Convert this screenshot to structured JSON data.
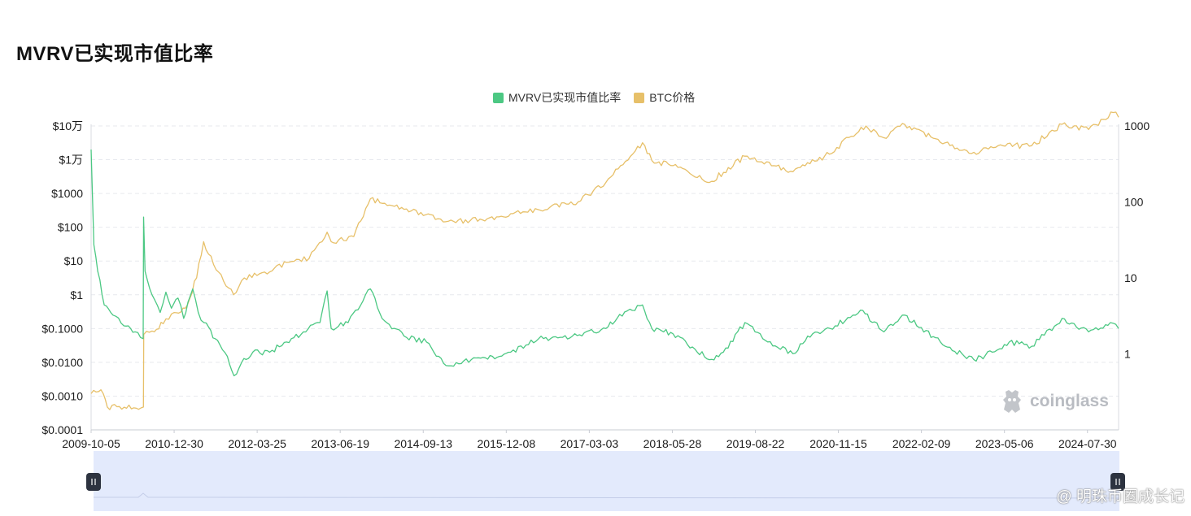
{
  "page": {
    "title": "MVRV已实现市值比率",
    "watermark": "coinglass",
    "corner_credit": "@ 明珠币圈成长记"
  },
  "chart_data": {
    "type": "line",
    "title": "MVRV已实现市值比率",
    "legend_position": "top-center",
    "grid": true,
    "legend": [
      {
        "name": "MVRV已实现市值比率",
        "color": "#4cc883",
        "icon": "square"
      },
      {
        "name": "BTC价格",
        "color": "#e7c069",
        "icon": "square"
      }
    ],
    "x_ticks": [
      "2009-10-05",
      "2010-12-30",
      "2012-03-25",
      "2013-06-19",
      "2014-09-13",
      "2015-12-08",
      "2017-03-03",
      "2018-05-28",
      "2019-08-22",
      "2020-11-15",
      "2022-02-09",
      "2023-05-06",
      "2024-07-30"
    ],
    "x_range": [
      "2009-10-05",
      "2025-01-15"
    ],
    "y_left": {
      "scale": "log",
      "range": [
        0.0001,
        100000
      ],
      "ticks": [
        {
          "value": 100000,
          "label": "$10万"
        },
        {
          "value": 10000,
          "label": "$1万"
        },
        {
          "value": 1000,
          "label": "$1000"
        },
        {
          "value": 100,
          "label": "$100"
        },
        {
          "value": 10,
          "label": "$10"
        },
        {
          "value": 1,
          "label": "$1"
        },
        {
          "value": 0.1,
          "label": "$0.1000"
        },
        {
          "value": 0.01,
          "label": "$0.0100"
        },
        {
          "value": 0.001,
          "label": "$0.0010"
        },
        {
          "value": 0.0001,
          "label": "$0.0001"
        }
      ]
    },
    "y_right": {
      "scale": "log",
      "range": [
        0.1,
        1000
      ],
      "ticks": [
        {
          "value": 1000,
          "label": "1000"
        },
        {
          "value": 100,
          "label": "100"
        },
        {
          "value": 10,
          "label": "10"
        },
        {
          "value": 1,
          "label": "1"
        }
      ]
    },
    "series": [
      {
        "name": "MVRV已实现市值比率",
        "color": "#4cc883",
        "axis": "left",
        "points": [
          [
            "2009-10-05",
            20000
          ],
          [
            "2009-10-20",
            30
          ],
          [
            "2009-11-10",
            5
          ],
          [
            "2009-12-15",
            0.5
          ],
          [
            "2010-02-01",
            0.25
          ],
          [
            "2010-04-01",
            0.12
          ],
          [
            "2010-06-01",
            0.08
          ],
          [
            "2010-07-15",
            0.05
          ],
          [
            "2010-07-17",
            200
          ],
          [
            "2010-07-25",
            5
          ],
          [
            "2010-09-01",
            1
          ],
          [
            "2010-10-15",
            0.3
          ],
          [
            "2010-11-15",
            1.2
          ],
          [
            "2010-12-15",
            0.4
          ],
          [
            "2011-01-20",
            0.8
          ],
          [
            "2011-02-20",
            0.2
          ],
          [
            "2011-03-15",
            0.6
          ],
          [
            "2011-04-10",
            1.5
          ],
          [
            "2011-05-10",
            0.3
          ],
          [
            "2011-06-10",
            0.15
          ],
          [
            "2011-08-10",
            0.05
          ],
          [
            "2011-10-15",
            0.015
          ],
          [
            "2011-11-20",
            0.004
          ],
          [
            "2012-01-01",
            0.01
          ],
          [
            "2012-03-01",
            0.02
          ],
          [
            "2012-06-01",
            0.02
          ],
          [
            "2012-09-01",
            0.04
          ],
          [
            "2012-12-01",
            0.08
          ],
          [
            "2013-03-01",
            0.15
          ],
          [
            "2013-04-09",
            1.3
          ],
          [
            "2013-05-01",
            0.1
          ],
          [
            "2013-08-01",
            0.15
          ],
          [
            "2013-11-30",
            1.5
          ],
          [
            "2014-02-01",
            0.2
          ],
          [
            "2014-06-01",
            0.06
          ],
          [
            "2014-10-01",
            0.04
          ],
          [
            "2015-01-15",
            0.008
          ],
          [
            "2015-06-01",
            0.012
          ],
          [
            "2015-11-01",
            0.015
          ],
          [
            "2016-01-01",
            0.02
          ],
          [
            "2016-06-01",
            0.05
          ],
          [
            "2016-12-01",
            0.06
          ],
          [
            "2017-06-01",
            0.1
          ],
          [
            "2017-08-01",
            0.2
          ],
          [
            "2017-12-17",
            0.5
          ],
          [
            "2018-02-06",
            0.1
          ],
          [
            "2018-06-01",
            0.07
          ],
          [
            "2018-12-15",
            0.012
          ],
          [
            "2019-03-01",
            0.02
          ],
          [
            "2019-06-26",
            0.15
          ],
          [
            "2019-10-01",
            0.05
          ],
          [
            "2020-03-13",
            0.018
          ],
          [
            "2020-06-01",
            0.06
          ],
          [
            "2020-10-01",
            0.1
          ],
          [
            "2021-03-15",
            0.35
          ],
          [
            "2021-07-20",
            0.08
          ],
          [
            "2021-11-10",
            0.25
          ],
          [
            "2022-06-18",
            0.03
          ],
          [
            "2022-11-21",
            0.012
          ],
          [
            "2023-03-01",
            0.02
          ],
          [
            "2023-06-01",
            0.04
          ],
          [
            "2023-10-01",
            0.03
          ],
          [
            "2024-03-14",
            0.2
          ],
          [
            "2024-08-05",
            0.08
          ],
          [
            "2024-12-01",
            0.15
          ],
          [
            "2025-01-15",
            0.1
          ]
        ]
      },
      {
        "name": "BTC价格",
        "color": "#e7c069",
        "axis": "right",
        "points": [
          [
            "2009-10-05",
            0.3
          ],
          [
            "2009-11-15",
            0.32
          ],
          [
            "2009-12-10",
            0.3
          ],
          [
            "2010-01-01",
            0.2
          ],
          [
            "2010-07-16",
            0.2
          ],
          [
            "2010-07-18",
            1.8
          ],
          [
            "2010-09-01",
            2.0
          ],
          [
            "2010-11-01",
            2.5
          ],
          [
            "2010-12-30",
            3.5
          ],
          [
            "2011-03-01",
            4
          ],
          [
            "2011-05-01",
            10
          ],
          [
            "2011-06-08",
            30
          ],
          [
            "2011-08-01",
            15
          ],
          [
            "2011-11-18",
            6
          ],
          [
            "2012-01-15",
            10
          ],
          [
            "2012-06-01",
            12
          ],
          [
            "2012-09-01",
            16
          ],
          [
            "2013-01-01",
            18
          ],
          [
            "2013-04-09",
            40
          ],
          [
            "2013-05-01",
            30
          ],
          [
            "2013-09-01",
            35
          ],
          [
            "2013-11-30",
            110
          ],
          [
            "2014-03-01",
            90
          ],
          [
            "2014-06-01",
            80
          ],
          [
            "2014-12-01",
            60
          ],
          [
            "2015-01-15",
            55
          ],
          [
            "2015-08-01",
            58
          ],
          [
            "2016-01-01",
            70
          ],
          [
            "2016-08-01",
            85
          ],
          [
            "2017-01-01",
            100
          ],
          [
            "2017-06-01",
            180
          ],
          [
            "2017-12-17",
            600
          ],
          [
            "2018-02-06",
            350
          ],
          [
            "2018-06-01",
            300
          ],
          [
            "2018-12-15",
            180
          ],
          [
            "2019-06-26",
            400
          ],
          [
            "2019-12-01",
            300
          ],
          [
            "2020-03-13",
            250
          ],
          [
            "2020-09-01",
            400
          ],
          [
            "2021-04-14",
            1000
          ],
          [
            "2021-07-20",
            700
          ],
          [
            "2021-11-10",
            1050
          ],
          [
            "2022-06-18",
            600
          ],
          [
            "2022-11-21",
            450
          ],
          [
            "2023-04-01",
            550
          ],
          [
            "2023-10-01",
            550
          ],
          [
            "2024-03-14",
            1050
          ],
          [
            "2024-08-05",
            900
          ],
          [
            "2024-12-17",
            1500
          ],
          [
            "2025-01-15",
            1300
          ]
        ]
      }
    ],
    "zoom_slider": {
      "start_percent": 0,
      "end_percent": 100
    }
  }
}
